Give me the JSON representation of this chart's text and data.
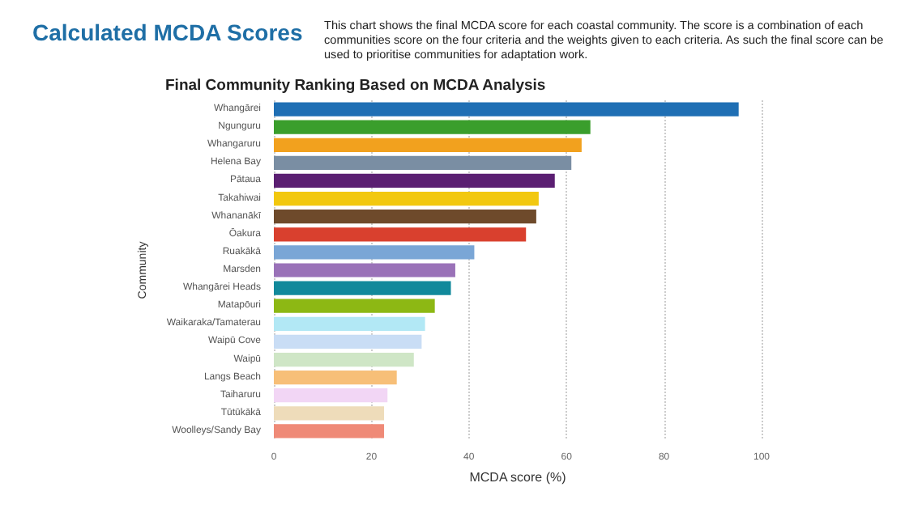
{
  "chart_data": {
    "type": "bar",
    "orientation": "horizontal",
    "title": "Calculated MCDA Scores",
    "subtitle": "Final Community Ranking Based on MCDA Analysis",
    "annotations": [
      "This chart shows the final MCDA score for each coastal community.  The score is a combination of each communities score on the four criteria and the weights given to each criteria.  As such the final score can be used to prioritise communities for adaptation work."
    ],
    "xlabel": "MCDA score (%)",
    "ylabel": "Community",
    "categories": [
      "Whangārei",
      "Ngunguru",
      "Whangaruru",
      "Helena Bay",
      "Pātaua",
      "Takahiwai",
      "Whananākī",
      "Ōakura",
      "Ruakākā",
      "Marsden",
      "Whangārei Heads",
      "Matapōuri",
      "Waikaraka/Tamaterau",
      "Waipū Cove",
      "Waipū",
      "Langs Beach",
      "Taiharuru",
      "Tūtūkākā",
      "Woolleys/Sandy Bay"
    ],
    "values": [
      95.3,
      64.9,
      63.1,
      61.0,
      57.6,
      54.3,
      53.8,
      51.7,
      41.1,
      37.2,
      36.3,
      33.0,
      31.0,
      30.3,
      28.7,
      25.2,
      23.3,
      22.6,
      22.6
    ],
    "colors": [
      "#1f6fb4",
      "#3a9e2c",
      "#f2a11e",
      "#7a8ea3",
      "#5b1f72",
      "#f2c80f",
      "#6e4a2b",
      "#d9402e",
      "#7aa6d6",
      "#9a72b8",
      "#11899b",
      "#8db814",
      "#b2e8f5",
      "#c9ddf5",
      "#cfe6c6",
      "#f7bf78",
      "#f2d6f5",
      "#eedcba",
      "#ef8a77"
    ],
    "xlim": [
      0,
      100
    ],
    "xticks": [
      0,
      20,
      40,
      60,
      80,
      100
    ],
    "grid": "x"
  }
}
